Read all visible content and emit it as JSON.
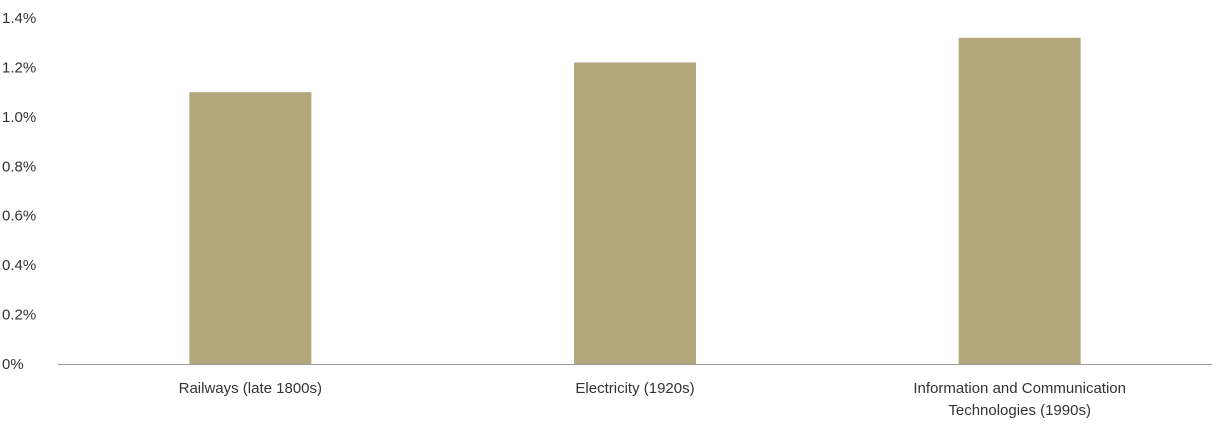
{
  "chart_data": {
    "type": "bar",
    "categories": [
      [
        "Railways (late 1800s)"
      ],
      [
        "Electricity (1920s)"
      ],
      [
        "Information and Communication",
        "Technologies (1990s)"
      ]
    ],
    "values": [
      1.1,
      1.22,
      1.32
    ],
    "yticks": [
      "0%",
      "0.2%",
      "0.4%",
      "0.6%",
      "0.8%",
      "1.0%",
      "1.2%",
      "1.4%"
    ],
    "ylim": [
      0,
      1.4
    ],
    "grid": false,
    "legend": "none",
    "colors": {
      "bar": "#b3a87b",
      "axis": "#999999",
      "text": "#333333"
    }
  }
}
